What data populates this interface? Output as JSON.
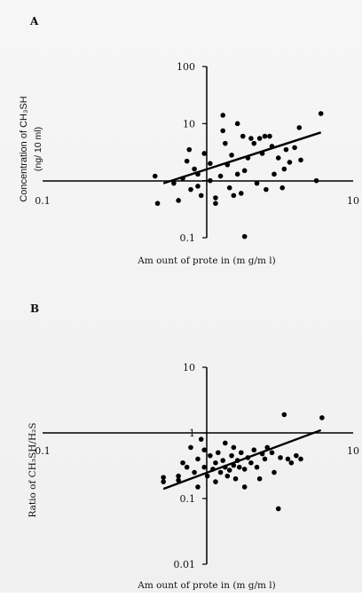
{
  "chart_data": [
    {
      "type": "scatter",
      "panel_label": "A",
      "xlabel": "Am ount of prote in (m g/m l)",
      "ylabel_line1": "Concentration of CH₃SH",
      "ylabel_line2": "(ng/ 10 ml)",
      "x_scale": "log",
      "y_scale": "log",
      "xlim": [
        0.1,
        10
      ],
      "ylim": [
        0.1,
        100
      ],
      "x_ticks": [
        {
          "value": 0.1,
          "label": "0.1"
        },
        {
          "value": 10,
          "label": "10"
        }
      ],
      "y_ticks": [
        {
          "value": 100,
          "label": "100"
        },
        {
          "value": 10,
          "label": "10"
        },
        {
          "value": 0.1,
          "label": "0.1"
        }
      ],
      "trendline": {
        "x": [
          0.6,
          6.2
        ],
        "y": [
          0.9,
          7.0
        ]
      },
      "points": [
        {
          "x": 0.53,
          "y": 1.2
        },
        {
          "x": 0.55,
          "y": 0.4
        },
        {
          "x": 0.7,
          "y": 0.9
        },
        {
          "x": 0.75,
          "y": 0.45
        },
        {
          "x": 0.8,
          "y": 1.1
        },
        {
          "x": 0.85,
          "y": 2.2
        },
        {
          "x": 0.88,
          "y": 3.5
        },
        {
          "x": 0.9,
          "y": 0.7
        },
        {
          "x": 0.95,
          "y": 1.6
        },
        {
          "x": 1.0,
          "y": 0.8
        },
        {
          "x": 1.0,
          "y": 1.3
        },
        {
          "x": 1.05,
          "y": 0.55
        },
        {
          "x": 1.1,
          "y": 3.0
        },
        {
          "x": 1.2,
          "y": 1.0
        },
        {
          "x": 1.2,
          "y": 2.0
        },
        {
          "x": 1.3,
          "y": 0.5
        },
        {
          "x": 1.3,
          "y": 0.4
        },
        {
          "x": 1.4,
          "y": 1.2
        },
        {
          "x": 1.45,
          "y": 14.0
        },
        {
          "x": 1.45,
          "y": 7.5
        },
        {
          "x": 1.5,
          "y": 4.5
        },
        {
          "x": 1.55,
          "y": 1.9
        },
        {
          "x": 1.6,
          "y": 0.75
        },
        {
          "x": 1.65,
          "y": 2.8
        },
        {
          "x": 1.7,
          "y": 0.55
        },
        {
          "x": 1.8,
          "y": 10.0
        },
        {
          "x": 1.8,
          "y": 1.3
        },
        {
          "x": 1.9,
          "y": 0.6
        },
        {
          "x": 1.95,
          "y": 6.0
        },
        {
          "x": 2.0,
          "y": 0.105
        },
        {
          "x": 2.0,
          "y": 1.5
        },
        {
          "x": 2.1,
          "y": 2.5
        },
        {
          "x": 2.2,
          "y": 5.5
        },
        {
          "x": 2.3,
          "y": 4.5
        },
        {
          "x": 2.4,
          "y": 0.9
        },
        {
          "x": 2.5,
          "y": 5.5
        },
        {
          "x": 2.6,
          "y": 3.0
        },
        {
          "x": 2.7,
          "y": 6.0
        },
        {
          "x": 2.75,
          "y": 0.7
        },
        {
          "x": 2.9,
          "y": 6.0
        },
        {
          "x": 3.0,
          "y": 4.0
        },
        {
          "x": 3.1,
          "y": 1.3
        },
        {
          "x": 3.3,
          "y": 2.5
        },
        {
          "x": 3.5,
          "y": 0.75
        },
        {
          "x": 3.6,
          "y": 1.6
        },
        {
          "x": 3.7,
          "y": 3.5
        },
        {
          "x": 3.9,
          "y": 2.1
        },
        {
          "x": 4.2,
          "y": 3.8
        },
        {
          "x": 4.5,
          "y": 8.5
        },
        {
          "x": 4.6,
          "y": 2.3
        },
        {
          "x": 5.8,
          "y": 1.0
        },
        {
          "x": 6.2,
          "y": 15.0
        }
      ]
    },
    {
      "type": "scatter",
      "panel_label": "B",
      "xlabel": "Am ount of prote in (m g/m l)",
      "ylabel": "Ratio of CH₃SH/H₂S",
      "x_scale": "log",
      "y_scale": "log",
      "xlim": [
        0.1,
        10
      ],
      "ylim": [
        0.01,
        10
      ],
      "x_ticks": [
        {
          "value": 0.1,
          "label": "0.1"
        },
        {
          "value": 10,
          "label": "10"
        }
      ],
      "y_ticks": [
        {
          "value": 10,
          "label": "10"
        },
        {
          "value": 1,
          "label": "1"
        },
        {
          "value": 0.1,
          "label": "0.1"
        },
        {
          "value": 0.01,
          "label": "0.01"
        }
      ],
      "trendline": {
        "x": [
          0.6,
          6.2
        ],
        "y": [
          0.14,
          1.1
        ]
      },
      "points": [
        {
          "x": 0.6,
          "y": 0.18
        },
        {
          "x": 0.6,
          "y": 0.21
        },
        {
          "x": 0.75,
          "y": 0.19
        },
        {
          "x": 0.75,
          "y": 0.22
        },
        {
          "x": 0.8,
          "y": 0.35
        },
        {
          "x": 0.85,
          "y": 0.3
        },
        {
          "x": 0.9,
          "y": 0.6
        },
        {
          "x": 0.95,
          "y": 0.25
        },
        {
          "x": 1.0,
          "y": 0.4
        },
        {
          "x": 1.0,
          "y": 0.15
        },
        {
          "x": 1.05,
          "y": 0.8
        },
        {
          "x": 1.1,
          "y": 0.55
        },
        {
          "x": 1.1,
          "y": 0.3
        },
        {
          "x": 1.15,
          "y": 0.22
        },
        {
          "x": 1.2,
          "y": 0.45
        },
        {
          "x": 1.25,
          "y": 0.28
        },
        {
          "x": 1.3,
          "y": 0.35
        },
        {
          "x": 1.3,
          "y": 0.18
        },
        {
          "x": 1.35,
          "y": 0.5
        },
        {
          "x": 1.4,
          "y": 0.25
        },
        {
          "x": 1.45,
          "y": 0.38
        },
        {
          "x": 1.5,
          "y": 0.3
        },
        {
          "x": 1.5,
          "y": 0.7
        },
        {
          "x": 1.55,
          "y": 0.22
        },
        {
          "x": 1.6,
          "y": 0.27
        },
        {
          "x": 1.65,
          "y": 0.45
        },
        {
          "x": 1.7,
          "y": 0.32
        },
        {
          "x": 1.7,
          "y": 0.6
        },
        {
          "x": 1.75,
          "y": 0.2
        },
        {
          "x": 1.8,
          "y": 0.38
        },
        {
          "x": 1.85,
          "y": 0.3
        },
        {
          "x": 1.9,
          "y": 0.5
        },
        {
          "x": 2.0,
          "y": 0.15
        },
        {
          "x": 2.0,
          "y": 0.28
        },
        {
          "x": 2.1,
          "y": 0.42
        },
        {
          "x": 2.2,
          "y": 0.35
        },
        {
          "x": 2.3,
          "y": 0.55
        },
        {
          "x": 2.4,
          "y": 0.3
        },
        {
          "x": 2.5,
          "y": 0.2
        },
        {
          "x": 2.6,
          "y": 0.48
        },
        {
          "x": 2.7,
          "y": 0.4
        },
        {
          "x": 2.8,
          "y": 0.6
        },
        {
          "x": 3.0,
          "y": 0.5
        },
        {
          "x": 3.1,
          "y": 0.25
        },
        {
          "x": 3.3,
          "y": 0.07
        },
        {
          "x": 3.4,
          "y": 0.42
        },
        {
          "x": 3.6,
          "y": 1.9
        },
        {
          "x": 3.8,
          "y": 0.4
        },
        {
          "x": 4.0,
          "y": 0.35
        },
        {
          "x": 4.3,
          "y": 0.45
        },
        {
          "x": 4.6,
          "y": 0.4
        },
        {
          "x": 6.3,
          "y": 1.7
        }
      ]
    }
  ]
}
